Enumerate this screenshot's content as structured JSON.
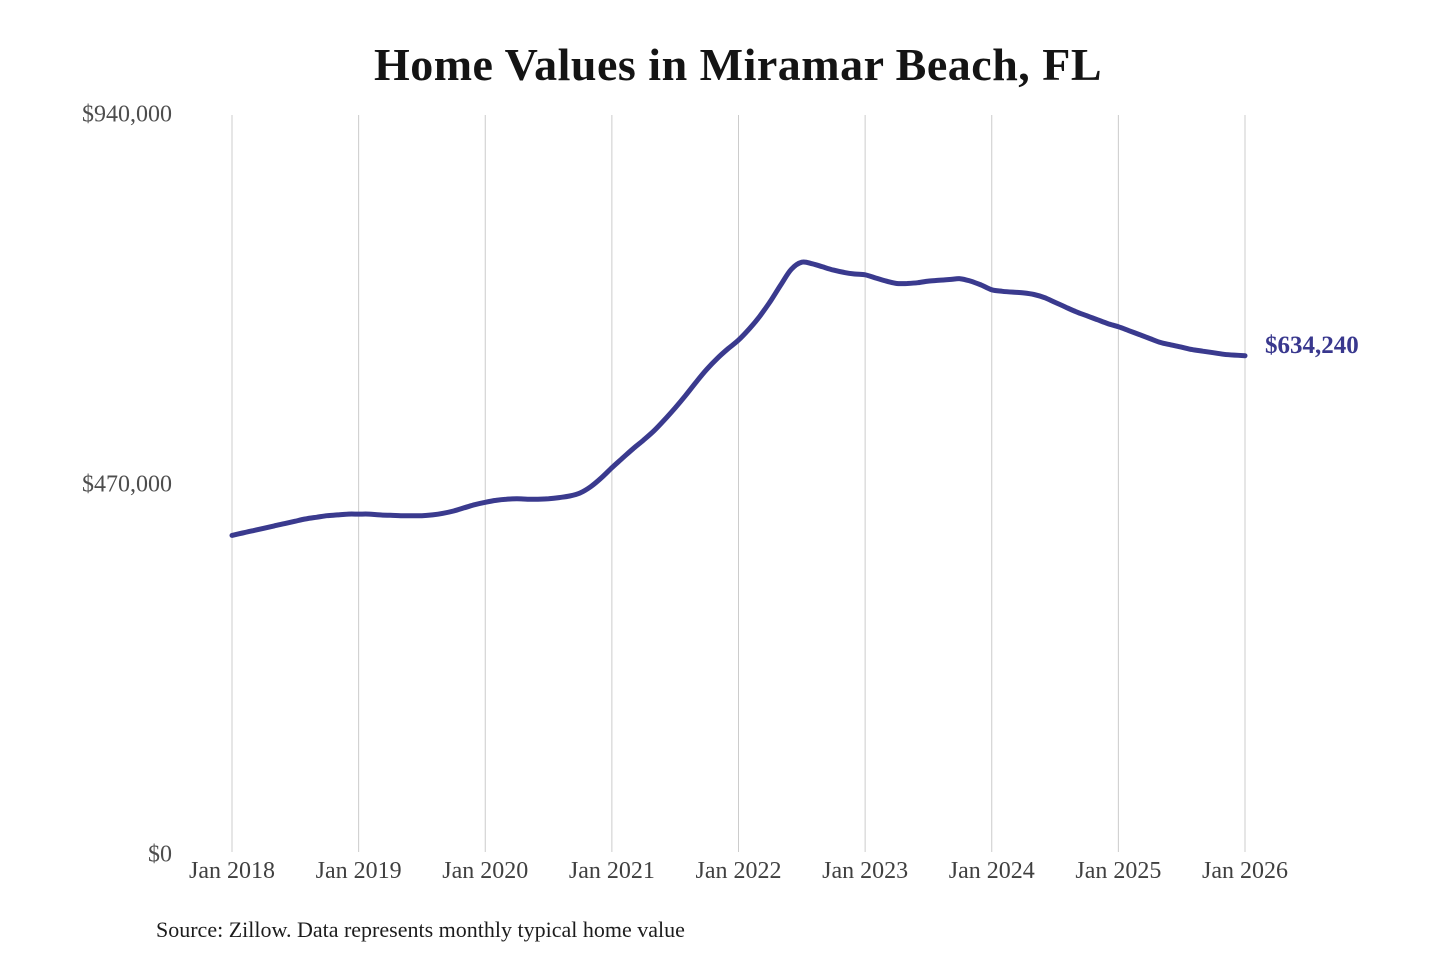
{
  "title": "Home Values in Miramar Beach, FL",
  "source_note": "Source: Zillow. Data represents monthly typical home value",
  "end_value_label": "$634,240",
  "colors": {
    "line": "#3a3a8e",
    "end_label": "#39388e",
    "grid": "#cccccc",
    "title_text": "#141414",
    "y_tick_text": "#4d4d4d",
    "x_tick_text": "#404040",
    "source_text": "#1c1c1c",
    "background": "#ffffff"
  },
  "chart_data": {
    "type": "line",
    "title": "Home Values in Miramar Beach, FL",
    "x_start": "2018-01",
    "x_end": "2026-01",
    "interval": "monthly",
    "x_tick_labels": [
      "Jan 2018",
      "Jan 2019",
      "Jan 2020",
      "Jan 2021",
      "Jan 2022",
      "Jan 2023",
      "Jan 2024",
      "Jan 2025",
      "Jan 2026"
    ],
    "y_ticks": [
      {
        "label": "$940,000",
        "value": 940000
      },
      {
        "label": "$470,000",
        "value": 470000
      },
      {
        "label": "$0",
        "value": 0
      }
    ],
    "ylim": [
      0,
      940000
    ],
    "grid": "vertical",
    "legend": "none",
    "series": [
      {
        "name": "Monthly typical home value",
        "end_label": "$634,240",
        "values": [
          406000,
          409000,
          412000,
          415000,
          418000,
          421000,
          424000,
          427000,
          429000,
          431000,
          432000,
          433000,
          433000,
          433000,
          432000,
          431500,
          431000,
          431000,
          431000,
          432000,
          434000,
          437000,
          441000,
          445000,
          448000,
          450500,
          452000,
          452500,
          452000,
          452000,
          452500,
          454000,
          456000,
          460000,
          468000,
          479000,
          492000,
          504000,
          516000,
          527000,
          539000,
          553000,
          568000,
          584000,
          601000,
          617000,
          631000,
          643000,
          654000,
          668000,
          684000,
          703000,
          724000,
          744000,
          753000,
          751000,
          747000,
          743000,
          740000,
          738000,
          737000,
          733000,
          729000,
          726000,
          726000,
          727000,
          729000,
          730000,
          731000,
          732000,
          729000,
          724000,
          718000,
          716000,
          715000,
          714000,
          712000,
          708000,
          702000,
          696000,
          690000,
          685000,
          680000,
          675000,
          671000,
          666000,
          661000,
          656000,
          651000,
          648000,
          645000,
          642000,
          640000,
          638000,
          636000,
          635000,
          634240
        ]
      }
    ]
  }
}
